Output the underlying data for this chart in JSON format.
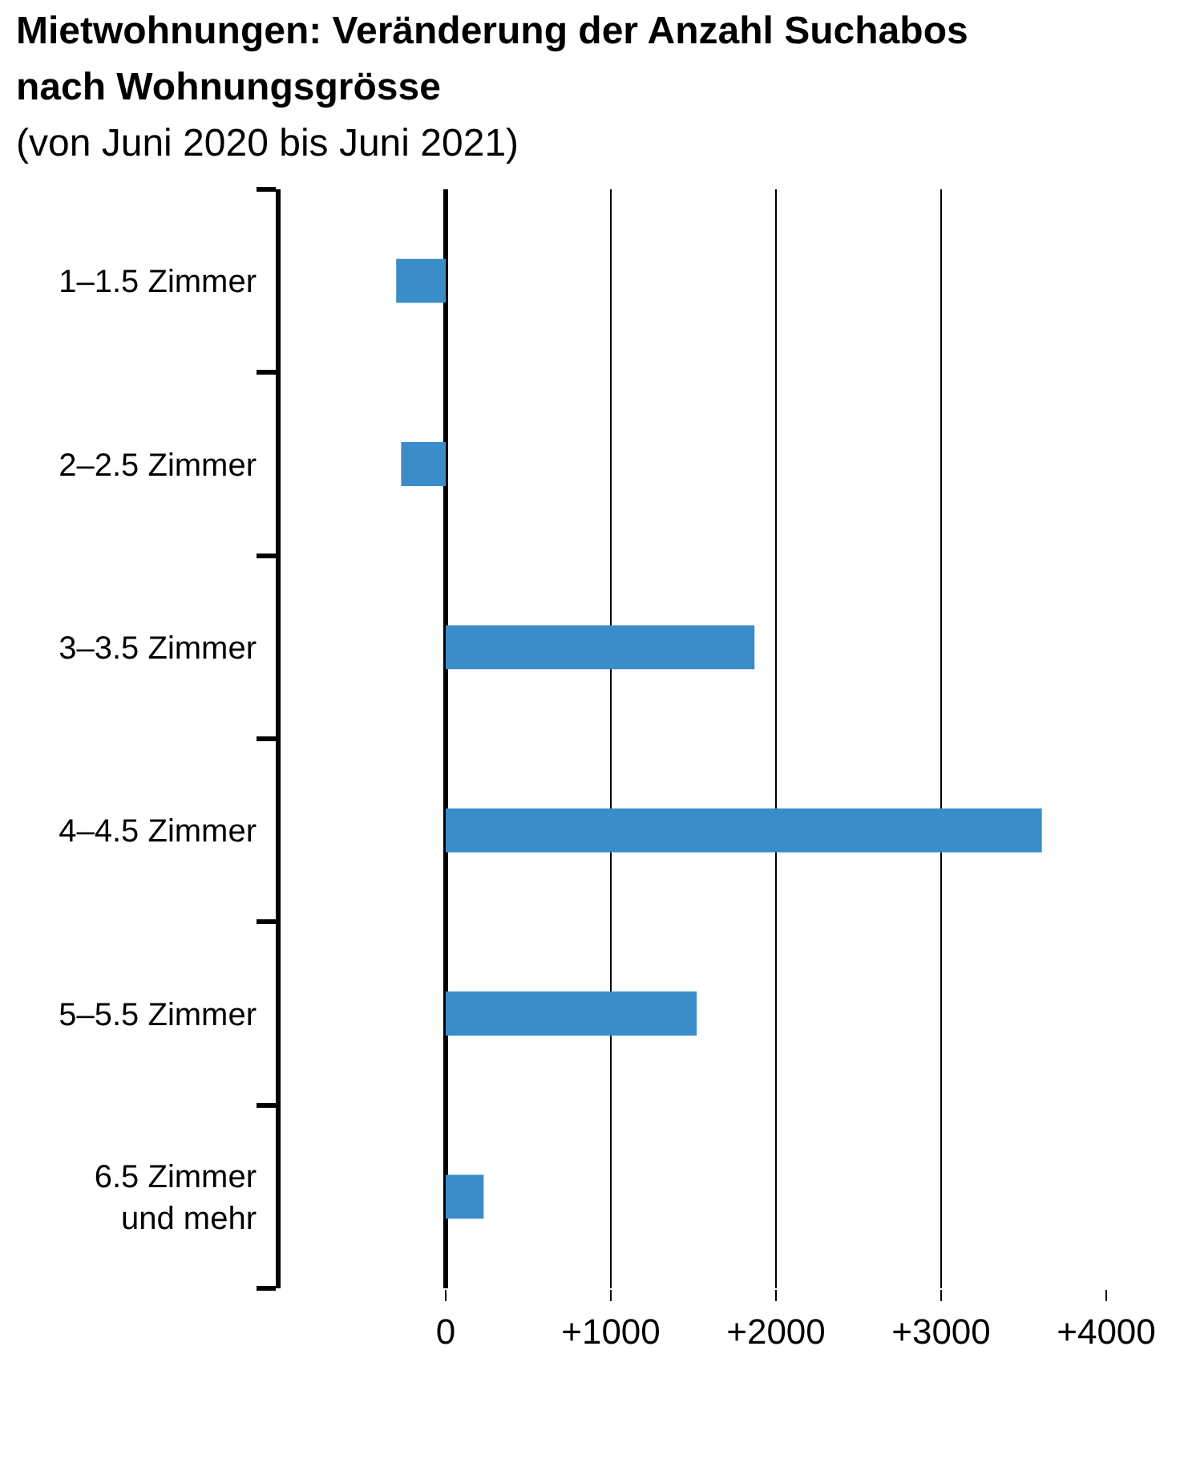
{
  "chart_data": {
    "type": "bar",
    "orientation": "horizontal",
    "title": "Mietwohnungen: Veränderung der Anzahl Suchabos\nnach Wohnungsgrösse",
    "subtitle": "(von Juni 2020 bis Juni 2021)",
    "categories": [
      "1–1.5 Zimmer",
      "2–2.5 Zimmer",
      "3–3.5 Zimmer",
      "4–4.5 Zimmer",
      "5–5.5 Zimmer",
      "6.5 Zimmer\nund mehr"
    ],
    "values": [
      -300,
      -270,
      1870,
      3610,
      1520,
      230
    ],
    "color": "#3b8dca",
    "xlim": [
      -1000,
      4000
    ],
    "xticks": [
      0,
      {
        "value": 1000,
        "label": "+1000"
      },
      {
        "value": 2000,
        "label": "+2000"
      },
      {
        "value": 3000,
        "label": "+3000"
      },
      {
        "value": 4000,
        "label": "+4000"
      }
    ],
    "grid": "x"
  }
}
